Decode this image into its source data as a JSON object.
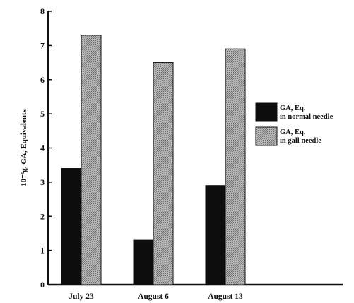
{
  "colors": {
    "normal": "#0d0d0d",
    "gall": "#a8a8a8",
    "axis": "#111111"
  },
  "chart_data": {
    "type": "bar",
    "categories": [
      "July 23",
      "August 6",
      "August 13"
    ],
    "series": [
      {
        "name": "GA, Eq.\nin normal needle",
        "values": [
          3.4,
          1.3,
          2.9
        ]
      },
      {
        "name": "GA, Eq.\nin gall needle",
        "values": [
          7.3,
          6.5,
          6.9
        ]
      }
    ],
    "ylabel": "10⁻⁶g. GA, Equivalents",
    "ylim": [
      0,
      8
    ],
    "yticks": [
      0,
      1,
      2,
      3,
      4,
      5,
      6,
      7,
      8
    ],
    "grid": false,
    "legend": "right"
  }
}
